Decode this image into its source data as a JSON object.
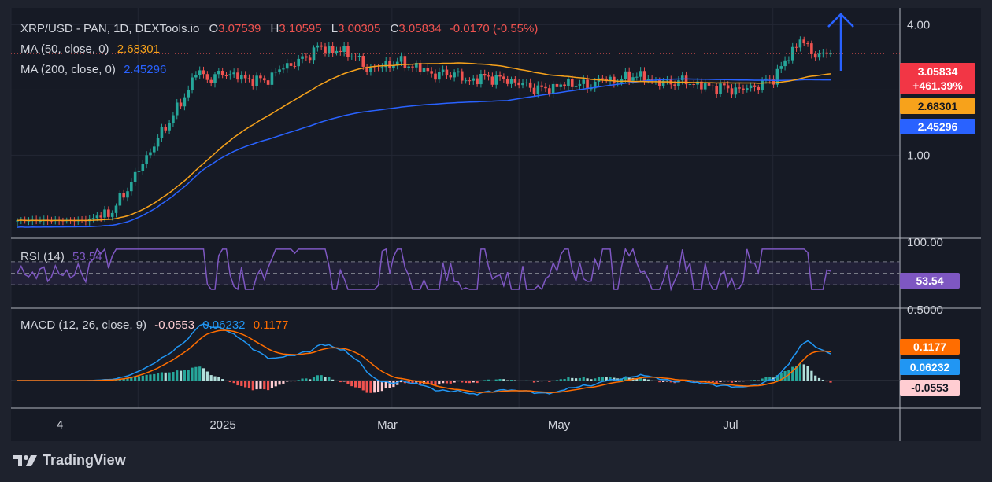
{
  "header": {
    "symbol": "XRP/USD - PAN, 1D, DEXTools.io",
    "o_label": "O",
    "o_value": "3.07539",
    "h_label": "H",
    "h_value": "3.10595",
    "l_label": "L",
    "l_value": "3.00305",
    "c_label": "C",
    "c_value": "3.05834",
    "change": "-0.0170 (-0.55%)"
  },
  "indicators": {
    "ma50_label": "MA (50, close, 0)",
    "ma50_value": "2.68301",
    "ma200_label": "MA (200, close, 0)",
    "ma200_value": "2.45296",
    "rsi_label": "RSI (14)",
    "rsi_value": "53.54",
    "macd_label": "MACD (12, 26, close, 9)",
    "macd_hist": "-0.0553",
    "macd_line": "0.06232",
    "macd_signal": "0.1177"
  },
  "price_tags": {
    "last": "3.05834",
    "pct": "+461.39%",
    "ma50": "2.68301",
    "ma200": "2.45296",
    "rsi": "53.54",
    "macd_signal": "0.1177",
    "macd_line": "0.06232",
    "macd_hist": "-0.0553"
  },
  "axis": {
    "price_ticks": [
      "4.00",
      "1.00"
    ],
    "rsi_tick": "100.00",
    "macd_tick": "0.5000",
    "x_ticks": [
      "4",
      "2025",
      "Mar",
      "May",
      "Jul"
    ]
  },
  "colors": {
    "up": "#26a69a",
    "down": "#ef5350",
    "ma50": "#f7a21b",
    "ma200": "#2962ff",
    "rsi": "#7e57c2",
    "macd": "#2196f3",
    "signal": "#ff6d00",
    "arrow": "#2962ff"
  },
  "brand": "TradingView",
  "chart_data": {
    "type": "candlestick",
    "title": "XRP/USD - PAN, 1D, DEXTools.io",
    "yscale": "log",
    "ylim": [
      0.45,
      4.4
    ],
    "rsi_range": [
      0,
      100
    ],
    "close_anchors": [
      [
        0,
        0.5
      ],
      [
        18,
        0.5
      ],
      [
        25,
        0.55
      ],
      [
        30,
        0.75
      ],
      [
        35,
        1.05
      ],
      [
        40,
        1.45
      ],
      [
        44,
        1.85
      ],
      [
        47,
        2.45
      ],
      [
        50,
        2.25
      ],
      [
        55,
        2.4
      ],
      [
        60,
        2.25
      ],
      [
        65,
        2.2
      ],
      [
        70,
        2.55
      ],
      [
        75,
        2.75
      ],
      [
        79,
        3.15
      ],
      [
        83,
        3.05
      ],
      [
        88,
        2.95
      ],
      [
        92,
        2.5
      ],
      [
        96,
        2.55
      ],
      [
        100,
        2.7
      ],
      [
        105,
        2.55
      ],
      [
        110,
        2.35
      ],
      [
        115,
        2.4
      ],
      [
        118,
        2.2
      ],
      [
        124,
        2.3
      ],
      [
        130,
        2.2
      ],
      [
        134,
        2.1
      ],
      [
        138,
        2.0
      ],
      [
        142,
        2.08
      ],
      [
        146,
        2.15
      ],
      [
        150,
        2.08
      ],
      [
        154,
        2.25
      ],
      [
        158,
        2.2
      ],
      [
        162,
        2.35
      ],
      [
        166,
        2.25
      ],
      [
        170,
        2.15
      ],
      [
        175,
        2.2
      ],
      [
        180,
        2.1
      ],
      [
        185,
        2.05
      ],
      [
        190,
        2.0
      ],
      [
        195,
        2.1
      ],
      [
        199,
        2.28
      ],
      [
        203,
        2.85
      ],
      [
        206,
        3.45
      ],
      [
        208,
        3.1
      ],
      [
        210,
        2.95
      ],
      [
        212,
        2.85
      ],
      [
        214,
        3.05
      ]
    ],
    "ma50": "2.68301",
    "ma200": "2.45296",
    "rsi_last": 53.54,
    "macd_last": {
      "macd": 0.06232,
      "signal": 0.1177,
      "hist": -0.0553
    }
  }
}
